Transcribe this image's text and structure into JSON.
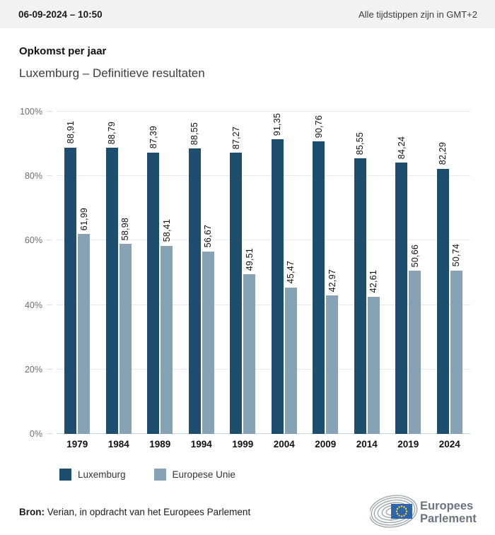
{
  "header": {
    "datetime": "06-09-2024 – 10:50",
    "timezone_note": "Alle tijdstippen zijn in GMT+2"
  },
  "title": "Opkomst per jaar",
  "subtitle": "Luxemburg – Definitieve resultaten",
  "chart_data": {
    "type": "bar",
    "title": "Opkomst per jaar",
    "subtitle": "Luxemburg – Definitieve resultaten",
    "categories": [
      "1979",
      "1984",
      "1989",
      "1994",
      "1999",
      "2004",
      "2009",
      "2014",
      "2019",
      "2024"
    ],
    "series": [
      {
        "name": "Luxemburg",
        "color": "#1d4e6d",
        "values": [
          88.91,
          88.79,
          87.39,
          88.55,
          87.27,
          91.35,
          90.76,
          85.55,
          84.24,
          82.29
        ],
        "labels": [
          "88,91",
          "88,79",
          "87,39",
          "88,55",
          "87,27",
          "91,35",
          "90,76",
          "85,55",
          "84,24",
          "82,29"
        ]
      },
      {
        "name": "Europese Unie",
        "color": "#87a2b5",
        "values": [
          61.99,
          58.98,
          58.41,
          56.67,
          49.51,
          45.47,
          42.97,
          42.61,
          50.66,
          50.74
        ],
        "labels": [
          "61,99",
          "58,98",
          "58,41",
          "56,67",
          "49,51",
          "45,47",
          "42,97",
          "42,61",
          "50,66",
          "50,74"
        ]
      }
    ],
    "ylabel": "",
    "xlabel": "",
    "ylim": [
      0,
      100
    ],
    "yticks": [
      "0%",
      "20%",
      "40%",
      "60%",
      "80%",
      "100%"
    ],
    "grid": true,
    "legend_position": "bottom"
  },
  "legend": {
    "items": [
      {
        "label": "Luxemburg",
        "color": "#1d4e6d"
      },
      {
        "label": "Europese Unie",
        "color": "#87a2b5"
      }
    ]
  },
  "footer": {
    "source_label": "Bron:",
    "source_text": "Verian, in opdracht van het Europees Parlement",
    "logo": {
      "line1": "Europees",
      "line2": "Parlement"
    }
  },
  "colors": {
    "series_dark": "#1d4e6d",
    "series_light": "#87a2b5",
    "header_bg": "#f2f2f2",
    "gridline": "#e8e8e8",
    "axis_line": "#c9d6de",
    "eu_flag_blue": "#2d64ae",
    "eu_star_yellow": "#ffd617",
    "logo_gray": "#6b7480"
  }
}
